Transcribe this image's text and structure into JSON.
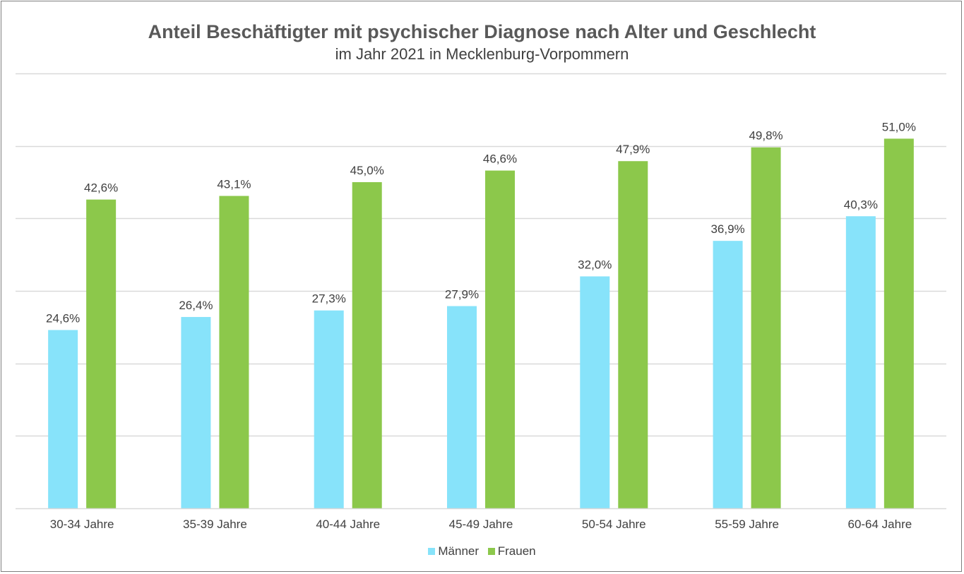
{
  "chart_data": {
    "type": "bar",
    "title": "Anteil Beschäftigter mit psychischer Diagnose nach Alter und Geschlecht",
    "subtitle": "im Jahr 2021 in Mecklenburg-Vorpommern",
    "categories": [
      "30-34 Jahre",
      "35-39 Jahre",
      "40-44 Jahre",
      "45-49 Jahre",
      "50-54 Jahre",
      "55-59 Jahre",
      "60-64 Jahre"
    ],
    "series": [
      {
        "name": "Männer",
        "color": "#87e3fa",
        "values": [
          24.6,
          26.4,
          27.3,
          27.9,
          32.0,
          36.9,
          40.3
        ],
        "labels": [
          "24,6%",
          "26,4%",
          "27,3%",
          "27,9%",
          "32,0%",
          "36,9%",
          "40,3%"
        ]
      },
      {
        "name": "Frauen",
        "color": "#8cc84b",
        "values": [
          42.6,
          43.1,
          45.0,
          46.6,
          47.9,
          49.8,
          51.0
        ],
        "labels": [
          "42,6%",
          "43,1%",
          "45,0%",
          "46,6%",
          "47,9%",
          "49,8%",
          "51,0%"
        ]
      }
    ],
    "ylim": [
      0,
      60
    ],
    "grid": true,
    "legend": "bottom"
  }
}
